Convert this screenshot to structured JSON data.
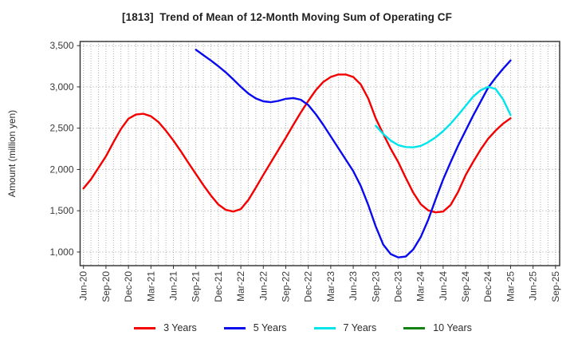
{
  "title": "[1813]  Trend of Mean of 12-Month Moving Sum of Operating CF",
  "y_axis": {
    "label": "Amount (million yen)",
    "tick_labels": [
      "1,000",
      "1,500",
      "2,000",
      "2,500",
      "3,000",
      "3,500"
    ],
    "tick_values": [
      1000,
      1500,
      2000,
      2500,
      3000,
      3500
    ]
  },
  "x_axis": {
    "tick_labels": [
      "Jun-20",
      "Sep-20",
      "Dec-20",
      "Mar-21",
      "Jun-21",
      "Sep-21",
      "Dec-21",
      "Mar-22",
      "Jun-22",
      "Sep-22",
      "Dec-22",
      "Mar-23",
      "Jun-23",
      "Sep-23",
      "Dec-23",
      "Mar-24",
      "Jun-24",
      "Sep-24",
      "Dec-24",
      "Mar-25",
      "Jun-25",
      "Sep-25"
    ],
    "tick_month_index": [
      0,
      3,
      6,
      9,
      12,
      15,
      18,
      21,
      24,
      27,
      30,
      33,
      36,
      39,
      42,
      45,
      48,
      51,
      54,
      57,
      60,
      63
    ]
  },
  "chart_data": {
    "type": "line",
    "title": "[1813]  Trend of Mean of 12-Month Moving Sum of Operating CF",
    "xlabel": "",
    "ylabel": "Amount (million yen)",
    "ylim": [
      835,
      3550
    ],
    "xlim_months": [
      -0.45,
      63.55
    ],
    "grid": "dotted",
    "legend_position": "bottom",
    "x_unit": "months since Jun-20, quarterly ticks Jun-20 to Sep-25",
    "series": [
      {
        "name": "3 Years",
        "color": "#f40000",
        "start_month": 0,
        "values": [
          1770,
          1880,
          2020,
          2160,
          2330,
          2490,
          2615,
          2665,
          2675,
          2645,
          2575,
          2470,
          2350,
          2220,
          2080,
          1945,
          1810,
          1685,
          1575,
          1510,
          1490,
          1520,
          1630,
          1780,
          1935,
          2085,
          2235,
          2385,
          2540,
          2690,
          2830,
          2960,
          3060,
          3120,
          3150,
          3150,
          3120,
          3030,
          2860,
          2620,
          2430,
          2250,
          2090,
          1900,
          1720,
          1580,
          1505,
          1480,
          1490,
          1570,
          1730,
          1930,
          2090,
          2240,
          2370,
          2470,
          2555,
          2620
        ]
      },
      {
        "name": "5 Years",
        "color": "#0a0aee",
        "start_month": 15,
        "values": [
          3450,
          3385,
          3320,
          3250,
          3175,
          3090,
          3000,
          2920,
          2860,
          2825,
          2815,
          2830,
          2855,
          2865,
          2845,
          2780,
          2670,
          2540,
          2400,
          2260,
          2120,
          1980,
          1800,
          1570,
          1310,
          1090,
          975,
          935,
          945,
          1030,
          1180,
          1390,
          1640,
          1880,
          2090,
          2290,
          2470,
          2650,
          2820,
          2990,
          3110,
          3220,
          3320
        ]
      },
      {
        "name": "7 Years",
        "color": "#00e4ec",
        "start_month": 39,
        "values": [
          2530,
          2430,
          2350,
          2295,
          2272,
          2268,
          2285,
          2330,
          2390,
          2465,
          2555,
          2660,
          2770,
          2880,
          2960,
          3000,
          2975,
          2850,
          2660
        ]
      },
      {
        "name": "10 Years",
        "color": "#128212",
        "start_month": null,
        "values": []
      }
    ]
  }
}
